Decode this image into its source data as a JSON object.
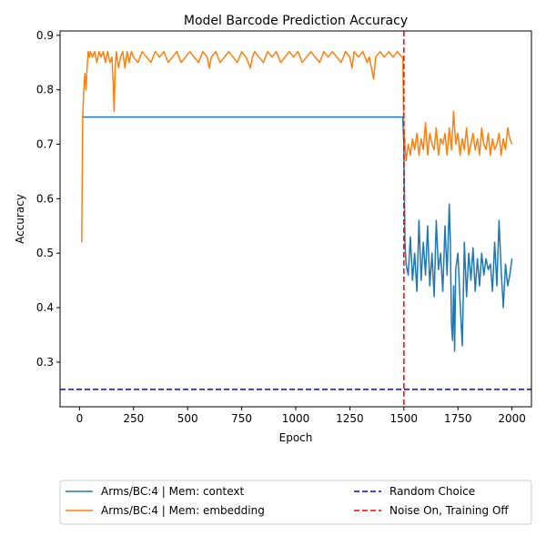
{
  "chart_data": {
    "type": "line",
    "title": "Model Barcode Prediction Accuracy",
    "xlabel": "Epoch",
    "ylabel": "Accuracy",
    "xlim": [
      -90,
      2090
    ],
    "ylim": [
      0.218,
      0.908
    ],
    "xticks": [
      0,
      250,
      500,
      750,
      1000,
      1250,
      1500,
      1750,
      2000
    ],
    "yticks": [
      0.3,
      0.4,
      0.5,
      0.6,
      0.7,
      0.8,
      0.9
    ],
    "grid": false,
    "legend_location": "below plot",
    "series": [
      {
        "name": "Arms/BC:4 | Mem: context",
        "color": "#1f77b4",
        "x": [
          10,
          100,
          200,
          300,
          400,
          500,
          600,
          700,
          800,
          900,
          1000,
          1100,
          1200,
          1300,
          1400,
          1495,
          1500,
          1505,
          1510,
          1520,
          1530,
          1540,
          1550,
          1560,
          1570,
          1580,
          1590,
          1600,
          1610,
          1620,
          1630,
          1640,
          1650,
          1660,
          1670,
          1680,
          1690,
          1700,
          1710,
          1715,
          1720,
          1725,
          1730,
          1735,
          1740,
          1750,
          1760,
          1770,
          1780,
          1790,
          1800,
          1810,
          1820,
          1830,
          1840,
          1850,
          1860,
          1870,
          1880,
          1890,
          1900,
          1910,
          1920,
          1930,
          1940,
          1950,
          1960,
          1970,
          1980,
          1990,
          2000
        ],
        "y": [
          0.75,
          0.75,
          0.75,
          0.75,
          0.75,
          0.75,
          0.75,
          0.75,
          0.75,
          0.75,
          0.75,
          0.75,
          0.75,
          0.75,
          0.75,
          0.75,
          0.7,
          0.52,
          0.48,
          0.46,
          0.53,
          0.45,
          0.5,
          0.43,
          0.56,
          0.45,
          0.52,
          0.46,
          0.55,
          0.44,
          0.5,
          0.42,
          0.56,
          0.47,
          0.5,
          0.43,
          0.55,
          0.46,
          0.59,
          0.52,
          0.37,
          0.34,
          0.44,
          0.32,
          0.47,
          0.5,
          0.41,
          0.33,
          0.52,
          0.42,
          0.5,
          0.45,
          0.51,
          0.43,
          0.49,
          0.44,
          0.5,
          0.46,
          0.49,
          0.47,
          0.48,
          0.43,
          0.52,
          0.44,
          0.56,
          0.47,
          0.4,
          0.48,
          0.44,
          0.46,
          0.49
        ]
      },
      {
        "name": "Arms/BC:4 | Mem: embedding",
        "color": "#ff7f0e",
        "x": [
          10,
          15,
          20,
          25,
          30,
          35,
          40,
          45,
          50,
          60,
          70,
          80,
          90,
          100,
          110,
          120,
          130,
          140,
          150,
          155,
          160,
          165,
          170,
          180,
          190,
          200,
          210,
          220,
          230,
          240,
          250,
          270,
          290,
          310,
          330,
          350,
          370,
          390,
          410,
          430,
          450,
          470,
          490,
          510,
          530,
          550,
          570,
          590,
          600,
          610,
          630,
          650,
          670,
          690,
          710,
          730,
          750,
          770,
          790,
          800,
          810,
          830,
          850,
          870,
          890,
          910,
          930,
          950,
          970,
          990,
          1010,
          1030,
          1050,
          1070,
          1090,
          1110,
          1130,
          1150,
          1170,
          1190,
          1210,
          1230,
          1250,
          1260,
          1270,
          1290,
          1310,
          1330,
          1340,
          1350,
          1360,
          1370,
          1390,
          1410,
          1430,
          1450,
          1470,
          1490,
          1495,
          1500,
          1510,
          1520,
          1530,
          1540,
          1550,
          1560,
          1570,
          1580,
          1590,
          1600,
          1610,
          1620,
          1630,
          1640,
          1650,
          1660,
          1670,
          1680,
          1690,
          1700,
          1710,
          1720,
          1730,
          1740,
          1750,
          1760,
          1770,
          1780,
          1790,
          1800,
          1810,
          1820,
          1830,
          1840,
          1850,
          1860,
          1870,
          1880,
          1890,
          1900,
          1910,
          1920,
          1930,
          1940,
          1950,
          1960,
          1970,
          1980,
          1990,
          2000
        ],
        "y": [
          0.52,
          0.75,
          0.8,
          0.83,
          0.8,
          0.84,
          0.87,
          0.86,
          0.87,
          0.86,
          0.87,
          0.85,
          0.87,
          0.86,
          0.87,
          0.85,
          0.87,
          0.85,
          0.86,
          0.82,
          0.76,
          0.84,
          0.87,
          0.84,
          0.86,
          0.87,
          0.84,
          0.87,
          0.85,
          0.87,
          0.86,
          0.85,
          0.87,
          0.86,
          0.85,
          0.87,
          0.86,
          0.87,
          0.85,
          0.86,
          0.87,
          0.85,
          0.86,
          0.87,
          0.86,
          0.85,
          0.87,
          0.86,
          0.84,
          0.86,
          0.87,
          0.85,
          0.86,
          0.87,
          0.86,
          0.85,
          0.87,
          0.86,
          0.84,
          0.86,
          0.87,
          0.86,
          0.85,
          0.87,
          0.86,
          0.87,
          0.85,
          0.86,
          0.87,
          0.86,
          0.87,
          0.85,
          0.86,
          0.87,
          0.86,
          0.85,
          0.87,
          0.86,
          0.87,
          0.86,
          0.85,
          0.87,
          0.86,
          0.84,
          0.87,
          0.86,
          0.87,
          0.85,
          0.86,
          0.84,
          0.82,
          0.86,
          0.87,
          0.86,
          0.87,
          0.86,
          0.87,
          0.86,
          0.86,
          0.73,
          0.67,
          0.7,
          0.68,
          0.71,
          0.69,
          0.72,
          0.68,
          0.71,
          0.69,
          0.74,
          0.68,
          0.72,
          0.7,
          0.69,
          0.73,
          0.68,
          0.71,
          0.7,
          0.72,
          0.68,
          0.73,
          0.69,
          0.76,
          0.7,
          0.72,
          0.68,
          0.71,
          0.69,
          0.73,
          0.68,
          0.7,
          0.72,
          0.69,
          0.71,
          0.68,
          0.73,
          0.7,
          0.69,
          0.72,
          0.68,
          0.71,
          0.69,
          0.7,
          0.72,
          0.68,
          0.71,
          0.69,
          0.73,
          0.71,
          0.7
        ]
      },
      {
        "name": "Random Choice",
        "color": "#0000ff",
        "style": "dashed",
        "orientation": "horizontal",
        "y": 0.25
      },
      {
        "name": "Noise On, Training Off",
        "color": "#ff0000",
        "style": "dashed",
        "orientation": "vertical",
        "x": 1500
      }
    ]
  }
}
